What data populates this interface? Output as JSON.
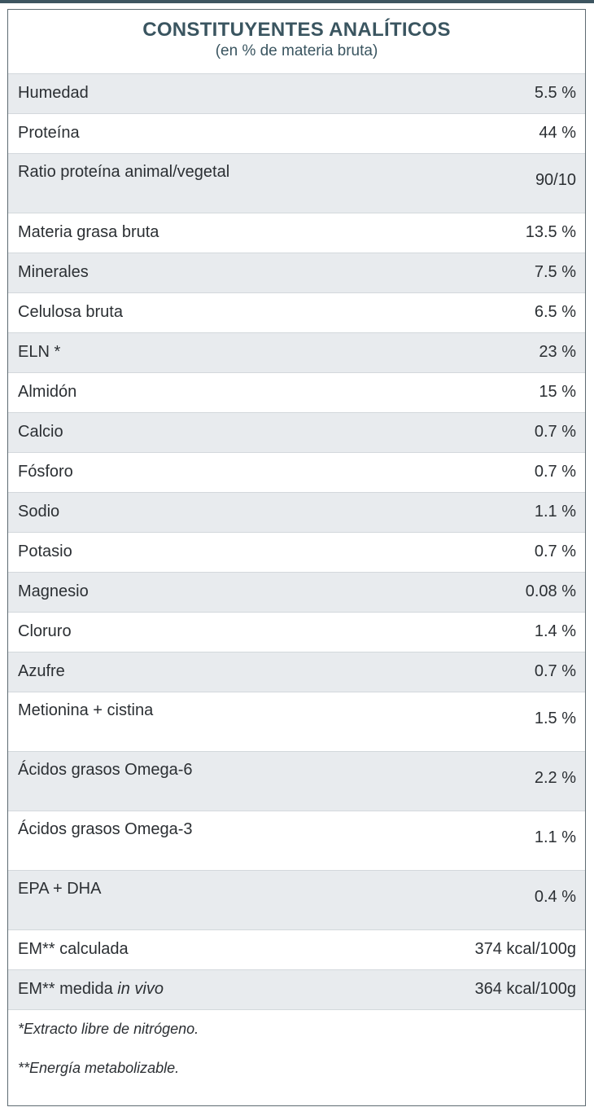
{
  "title": "CONSTITUYENTES ANALÍTICOS",
  "subtitle": "(en % de materia bruta)",
  "rows": [
    {
      "label": "Humedad",
      "value": "5.5 %"
    },
    {
      "label": "Proteína",
      "value": "44 %"
    },
    {
      "label": "Ratio proteína animal/vegetal",
      "value": "90/10"
    },
    {
      "label": "Materia grasa bruta",
      "value": "13.5 %"
    },
    {
      "label": "Minerales",
      "value": "7.5 %"
    },
    {
      "label": "Celulosa bruta",
      "value": "6.5 %"
    },
    {
      "label": "ELN *",
      "value": "23 %"
    },
    {
      "label": "Almidón",
      "value": "15 %"
    },
    {
      "label": "Calcio",
      "value": "0.7 %"
    },
    {
      "label": "Fósforo",
      "value": "0.7 %"
    },
    {
      "label": "Sodio",
      "value": "1.1 %"
    },
    {
      "label": "Potasio",
      "value": "0.7 %"
    },
    {
      "label": "Magnesio",
      "value": "0.08 %"
    },
    {
      "label": "Cloruro",
      "value": "1.4 %"
    },
    {
      "label": "Azufre",
      "value": "0.7 %"
    },
    {
      "label": "Metionina + cistina",
      "value": "1.5 %"
    },
    {
      "label": "Ácidos grasos Omega-6",
      "value": "2.2 %"
    },
    {
      "label": "Ácidos grasos Omega-3",
      "value": "1.1 %"
    },
    {
      "label": "EPA + DHA",
      "value": "0.4 %"
    },
    {
      "label": "EM** calculada",
      "value": "374 kcal/100g"
    },
    {
      "label": "EM** medida",
      "label_italic": "in vivo",
      "value": "364 kcal/100g"
    }
  ],
  "footnotes": [
    "*Extracto libre de nitrógeno.",
    "**Energía metabolizable."
  ],
  "colors": {
    "title": "#3a5560",
    "row_shade": "#e8ebee",
    "border": "#5e6b72",
    "top_bar": "#3d5560"
  }
}
